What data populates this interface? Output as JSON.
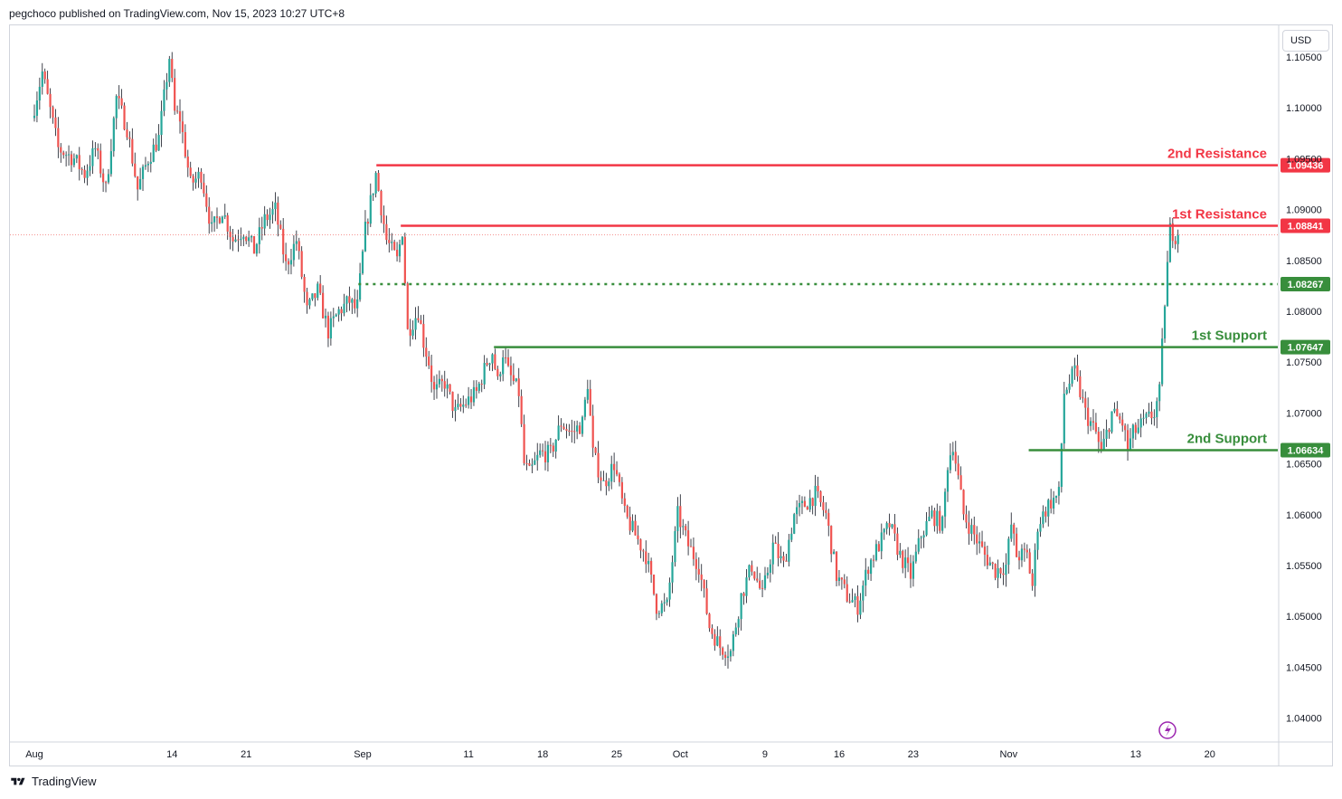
{
  "header": {
    "attribution": "pegchoco published on TradingView.com, Nov 15, 2023 10:27 UTC+8"
  },
  "footer": {
    "brand": "TradingView"
  },
  "price_axis": {
    "currency": "USD"
  },
  "colors": {
    "up": "#26a69a",
    "down": "#ef5350",
    "resistance": "#f23645",
    "support": "#388e3c",
    "grid": "#f0f3fa",
    "text": "#131722",
    "lightning": "#9c27b0"
  },
  "chart_data": {
    "type": "candlestick",
    "instrument_note": "",
    "y_ticks": [
      "1.10500",
      "1.10000",
      "1.09500",
      "1.09000",
      "1.08500",
      "1.08000",
      "1.07500",
      "1.07000",
      "1.06500",
      "1.06000",
      "1.05500",
      "1.05000",
      "1.04500",
      "1.04000"
    ],
    "x_ticks": [
      {
        "label": "Aug",
        "day": 0
      },
      {
        "label": "14",
        "day": 13
      },
      {
        "label": "21",
        "day": 20
      },
      {
        "label": "Sep",
        "day": 31
      },
      {
        "label": "11",
        "day": 41
      },
      {
        "label": "18",
        "day": 48
      },
      {
        "label": "25",
        "day": 55
      },
      {
        "label": "Oct",
        "day": 61
      },
      {
        "label": "9",
        "day": 69
      },
      {
        "label": "16",
        "day": 76
      },
      {
        "label": "23",
        "day": 83
      },
      {
        "label": "Nov",
        "day": 92
      },
      {
        "label": "13",
        "day": 104
      },
      {
        "label": "20",
        "day": 111
      }
    ],
    "ylim": [
      1.0378,
      1.1063
    ],
    "levels": [
      {
        "label": "2nd Resistance",
        "value": 1.09436,
        "display": "1.09436",
        "kind": "resistance",
        "style": "solid",
        "start_day": 32.3
      },
      {
        "label": "1st Resistance",
        "value": 1.08841,
        "display": "1.08841",
        "kind": "resistance",
        "style": "solid",
        "start_day": 34.6
      },
      {
        "label": "",
        "value": 1.08267,
        "display": "1.08267",
        "kind": "pivot",
        "style": "dotted",
        "start_day": 30.6
      },
      {
        "label": "1st Support",
        "value": 1.07647,
        "display": "1.07647",
        "kind": "support",
        "style": "solid",
        "start_day": 43.4
      },
      {
        "label": "2nd Support",
        "value": 1.06634,
        "display": "1.06634",
        "kind": "support",
        "style": "solid",
        "start_day": 93.9
      }
    ],
    "last_price": 1.0875,
    "price_path": [
      [
        0,
        1.099
      ],
      [
        1,
        1.1035
      ],
      [
        2.5,
        1.096
      ],
      [
        4,
        1.095
      ],
      [
        5,
        1.0935
      ],
      [
        6,
        1.096
      ],
      [
        7,
        1.092
      ],
      [
        8,
        1.101
      ],
      [
        9,
        1.098
      ],
      [
        10,
        1.092
      ],
      [
        11,
        1.095
      ],
      [
        12,
        1.097
      ],
      [
        13,
        1.105
      ],
      [
        13.5,
        1.0995
      ],
      [
        14,
        1.099
      ],
      [
        15,
        1.0925
      ],
      [
        16,
        1.0935
      ],
      [
        17,
        1.088
      ],
      [
        18,
        1.09
      ],
      [
        19,
        1.087
      ],
      [
        20,
        1.088
      ],
      [
        21,
        1.086
      ],
      [
        22,
        1.089
      ],
      [
        23,
        1.09
      ],
      [
        24,
        1.0845
      ],
      [
        25,
        1.087
      ],
      [
        26,
        1.08
      ],
      [
        27,
        1.082
      ],
      [
        28,
        1.078
      ],
      [
        29,
        1.08
      ],
      [
        30,
        1.081
      ],
      [
        30.7,
        1.08
      ],
      [
        31.5,
        1.088
      ],
      [
        32.5,
        1.0935
      ],
      [
        33.5,
        1.087
      ],
      [
        34.5,
        1.085
      ],
      [
        35,
        1.088
      ],
      [
        35.5,
        1.078
      ],
      [
        36.5,
        1.08
      ],
      [
        37,
        1.077
      ],
      [
        37.5,
        1.075
      ],
      [
        38,
        1.072
      ],
      [
        39,
        1.073
      ],
      [
        40,
        1.07
      ],
      [
        41,
        1.071
      ],
      [
        42,
        1.072
      ],
      [
        43,
        1.075
      ],
      [
        43.5,
        1.076
      ],
      [
        44,
        1.073
      ],
      [
        44.5,
        1.076
      ],
      [
        45,
        1.074
      ],
      [
        46,
        1.072
      ],
      [
        46.5,
        1.065
      ],
      [
        47,
        1.064
      ],
      [
        48,
        1.066
      ],
      [
        49,
        1.066
      ],
      [
        50,
        1.069
      ],
      [
        51,
        1.068
      ],
      [
        52,
        1.069
      ],
      [
        52.5,
        1.073
      ],
      [
        53,
        1.066
      ],
      [
        54,
        1.063
      ],
      [
        55,
        1.065
      ],
      [
        56,
        1.06
      ],
      [
        57,
        1.058
      ],
      [
        58,
        1.056
      ],
      [
        59,
        1.051
      ],
      [
        60,
        1.051
      ],
      [
        61,
        1.06
      ],
      [
        62,
        1.057
      ],
      [
        63,
        1.055
      ],
      [
        64,
        1.049
      ],
      [
        65,
        1.047
      ],
      [
        66,
        1.0465
      ],
      [
        67,
        1.052
      ],
      [
        68,
        1.055
      ],
      [
        69,
        1.052
      ],
      [
        70,
        1.057
      ],
      [
        71,
        1.055
      ],
      [
        72,
        1.06
      ],
      [
        73,
        1.061
      ],
      [
        74,
        1.062
      ],
      [
        75,
        1.06
      ],
      [
        76,
        1.054
      ],
      [
        77,
        1.052
      ],
      [
        78,
        1.051
      ],
      [
        79,
        1.055
      ],
      [
        80,
        1.057
      ],
      [
        81,
        1.059
      ],
      [
        82,
        1.056
      ],
      [
        83,
        1.054
      ],
      [
        84,
        1.058
      ],
      [
        85,
        1.06
      ],
      [
        86,
        1.059
      ],
      [
        86.5,
        1.065
      ],
      [
        87,
        1.067
      ],
      [
        88,
        1.06
      ],
      [
        89,
        1.058
      ],
      [
        90,
        1.056
      ],
      [
        91,
        1.0545
      ],
      [
        92,
        1.055
      ],
      [
        92.5,
        1.059
      ],
      [
        93,
        1.056
      ],
      [
        94,
        1.056
      ],
      [
        94.5,
        1.053
      ],
      [
        95,
        1.059
      ],
      [
        96,
        1.061
      ],
      [
        97,
        1.062
      ],
      [
        97.5,
        1.072
      ],
      [
        98.5,
        1.074
      ],
      [
        99.5,
        1.07
      ],
      [
        100.5,
        1.068
      ],
      [
        101,
        1.066
      ],
      [
        102,
        1.07
      ],
      [
        103,
        1.069
      ],
      [
        103.5,
        1.0665
      ],
      [
        104,
        1.068
      ],
      [
        105,
        1.069
      ],
      [
        106,
        1.07
      ],
      [
        106.5,
        1.072
      ],
      [
        107,
        1.081
      ],
      [
        107.5,
        1.088
      ],
      [
        108,
        1.0875
      ]
    ]
  }
}
